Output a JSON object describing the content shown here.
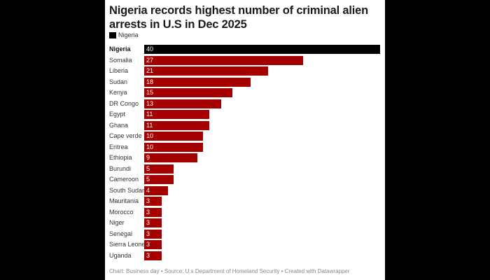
{
  "chart_data": {
    "type": "bar",
    "orientation": "horizontal",
    "title": "Nigeria records highest number of criminal alien arrests in U.S in Dec 2025",
    "legend": [
      {
        "label": "Nigeria",
        "color": "#000000"
      }
    ],
    "categories": [
      "Nigeria",
      "Somalia",
      "Liberia",
      "Sudan",
      "Kenya",
      "DR Congo",
      "Egypt",
      "Ghana",
      "Cape verde",
      "Eritrea",
      "Ethiopia",
      "Burundi",
      "Cameroon",
      "South Sudan",
      "Mauritania",
      "Morocco",
      "Niger",
      "Senegal",
      "Sierra Leone",
      "Uganda"
    ],
    "values": [
      40,
      27,
      21,
      18,
      15,
      13,
      11,
      11,
      10,
      10,
      9,
      5,
      5,
      4,
      3,
      3,
      3,
      3,
      3,
      3
    ],
    "highlight": "Nigeria",
    "colors": {
      "highlight": "#000000",
      "default": "#a50000"
    },
    "xlabel": "",
    "ylabel": "",
    "xlim": [
      0,
      40
    ],
    "grid": false,
    "legend_position": "top-left"
  },
  "footer": "Chart: Business day • Source: U.s Department of Homeland Security • Created with Datawrapper"
}
